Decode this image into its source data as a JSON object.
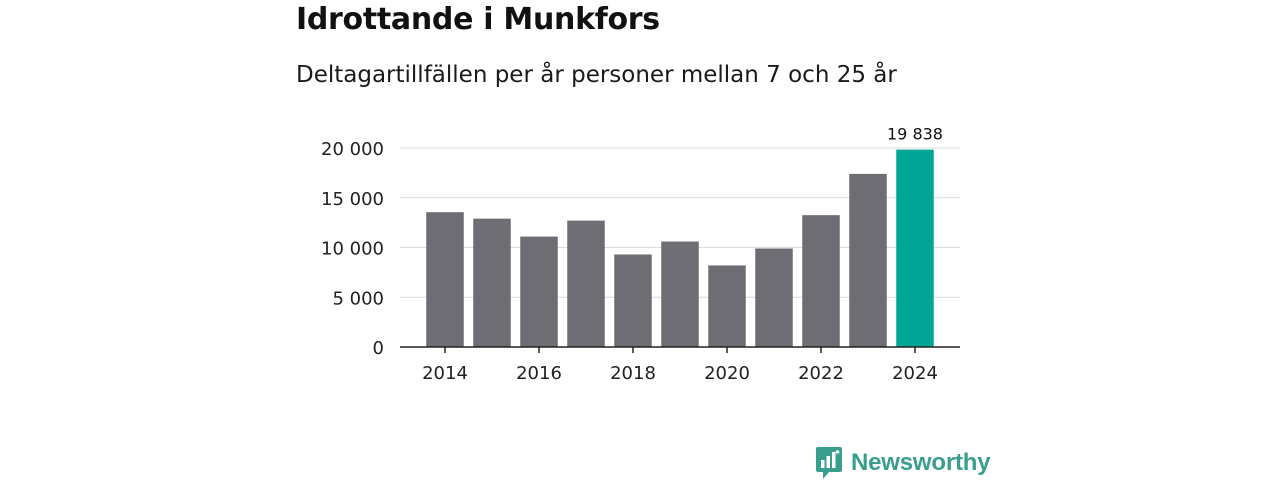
{
  "header": {
    "title": "Idrottande i Munkfors",
    "subtitle": "Deltagartillfällen per år personer mellan 7 och 25 år"
  },
  "branding": {
    "logo_text": "Newsworthy",
    "logo_color": "#3a9e8f"
  },
  "chart_data": {
    "type": "bar",
    "title": "Idrottande i Munkfors",
    "subtitle": "Deltagartillfällen per år personer mellan 7 och 25 år",
    "xlabel": "",
    "ylabel": "",
    "categories": [
      2014,
      2015,
      2016,
      2017,
      2018,
      2019,
      2020,
      2021,
      2022,
      2023,
      2024
    ],
    "values": [
      13550,
      12900,
      11100,
      12700,
      9300,
      10600,
      8200,
      9900,
      13250,
      17400,
      19838
    ],
    "x_tick_labels": [
      "2014",
      "2016",
      "2018",
      "2020",
      "2022",
      "2024"
    ],
    "y_ticks": [
      0,
      5000,
      10000,
      15000,
      20000
    ],
    "y_tick_labels": [
      "0",
      "5 000",
      "10 000",
      "15 000",
      "20 000"
    ],
    "ylim": [
      0,
      20000
    ],
    "grid": true,
    "bar_color": "#6e6d73",
    "highlight_color": "#00a596",
    "highlight_index": 10,
    "annotations": [
      {
        "category": 2024,
        "label": "19 838"
      }
    ]
  }
}
